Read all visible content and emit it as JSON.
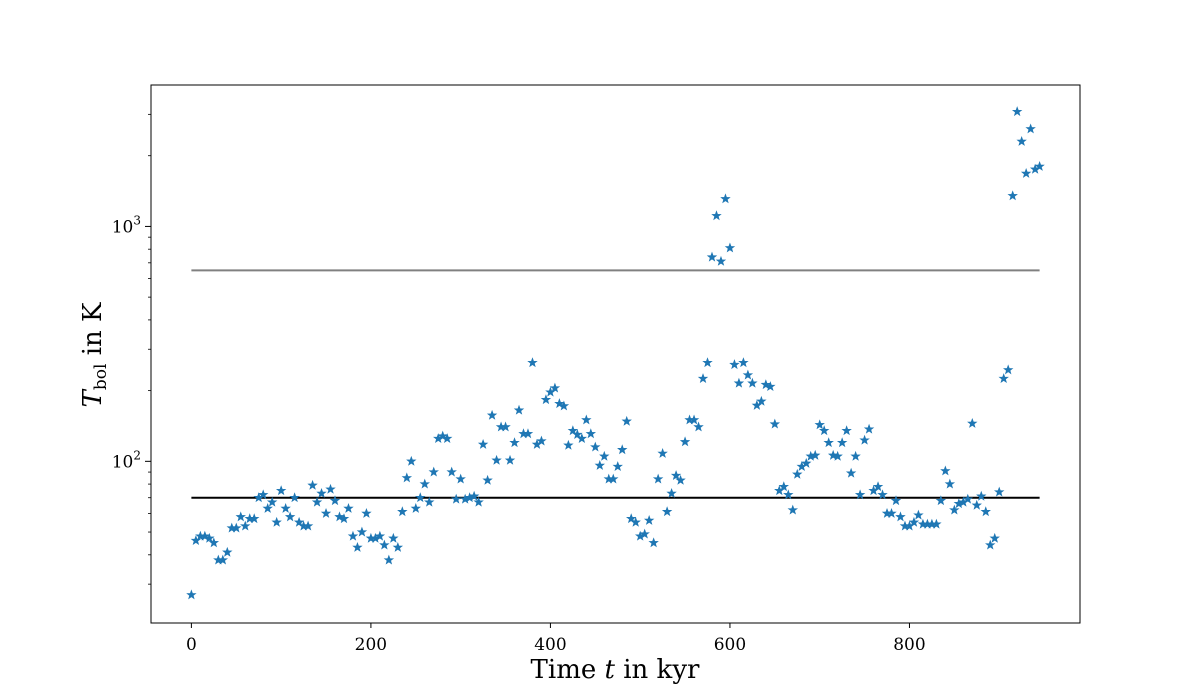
{
  "chart_data": {
    "type": "scatter",
    "title": "",
    "xlabel": "Time t in kyr",
    "xlabel_parts": {
      "prefix": "Time ",
      "var": "t",
      "suffix": " in kyr"
    },
    "ylabel": "T_bol in K",
    "ylabel_parts": {
      "var": "T",
      "sub": "bol",
      "suffix": " in K"
    },
    "xlim": [
      -45,
      990
    ],
    "ylim": [
      20.5,
      4000
    ],
    "yscale": "log",
    "grid": false,
    "legend": "none",
    "x_ticks": [
      0,
      200,
      400,
      600,
      800
    ],
    "x_tick_labels": [
      "0",
      "200",
      "400",
      "600",
      "800"
    ],
    "y_ticks_major": [
      100,
      1000
    ],
    "y_tick_labels": [
      {
        "base": "10",
        "exp": "2"
      },
      {
        "base": "10",
        "exp": "3"
      }
    ],
    "y_ticks_minor": [
      30,
      40,
      50,
      60,
      70,
      80,
      90,
      200,
      300,
      400,
      500,
      600,
      700,
      800,
      900,
      2000,
      3000
    ],
    "marker": "star",
    "marker_color": "#1f77b4",
    "reference_lines": [
      {
        "y": 70,
        "x_range": [
          0,
          945
        ],
        "color": "#000000"
      },
      {
        "y": 650,
        "x_range": [
          0,
          945
        ],
        "color": "#808080"
      }
    ],
    "series": [
      {
        "points": [
          [
            0,
            27
          ],
          [
            5,
            46
          ],
          [
            10,
            48
          ],
          [
            15,
            48
          ],
          [
            20,
            47
          ],
          [
            25,
            45
          ],
          [
            30,
            38
          ],
          [
            35,
            38
          ],
          [
            40,
            41
          ],
          [
            45,
            52
          ],
          [
            50,
            52
          ],
          [
            55,
            58
          ],
          [
            60,
            53
          ],
          [
            65,
            57
          ],
          [
            70,
            57
          ],
          [
            75,
            70
          ],
          [
            80,
            72
          ],
          [
            85,
            63
          ],
          [
            90,
            67
          ],
          [
            95,
            55
          ],
          [
            100,
            75
          ],
          [
            105,
            63
          ],
          [
            110,
            58
          ],
          [
            115,
            70
          ],
          [
            120,
            55
          ],
          [
            125,
            53
          ],
          [
            130,
            53
          ],
          [
            135,
            79
          ],
          [
            140,
            67
          ],
          [
            145,
            73
          ],
          [
            150,
            60
          ],
          [
            155,
            76
          ],
          [
            160,
            68
          ],
          [
            165,
            58
          ],
          [
            170,
            57
          ],
          [
            175,
            63
          ],
          [
            180,
            48
          ],
          [
            185,
            43
          ],
          [
            190,
            50
          ],
          [
            195,
            60
          ],
          [
            200,
            47
          ],
          [
            205,
            47
          ],
          [
            210,
            48
          ],
          [
            215,
            44
          ],
          [
            220,
            38
          ],
          [
            225,
            47
          ],
          [
            230,
            43
          ],
          [
            235,
            61
          ],
          [
            240,
            85
          ],
          [
            245,
            100
          ],
          [
            250,
            63
          ],
          [
            255,
            70
          ],
          [
            260,
            80
          ],
          [
            265,
            67
          ],
          [
            270,
            90
          ],
          [
            275,
            125
          ],
          [
            280,
            128
          ],
          [
            285,
            125
          ],
          [
            290,
            90
          ],
          [
            295,
            69
          ],
          [
            300,
            84
          ],
          [
            305,
            69
          ],
          [
            310,
            70
          ],
          [
            315,
            71
          ],
          [
            320,
            67
          ],
          [
            325,
            118
          ],
          [
            330,
            83
          ],
          [
            335,
            157
          ],
          [
            340,
            101
          ],
          [
            345,
            140
          ],
          [
            350,
            140
          ],
          [
            355,
            101
          ],
          [
            360,
            120
          ],
          [
            365,
            165
          ],
          [
            370,
            131
          ],
          [
            375,
            131
          ],
          [
            380,
            263
          ],
          [
            385,
            118
          ],
          [
            390,
            122
          ],
          [
            395,
            183
          ],
          [
            400,
            197
          ],
          [
            405,
            205
          ],
          [
            410,
            176
          ],
          [
            415,
            172
          ],
          [
            420,
            117
          ],
          [
            425,
            135
          ],
          [
            430,
            130
          ],
          [
            435,
            125
          ],
          [
            440,
            150
          ],
          [
            445,
            131
          ],
          [
            450,
            115
          ],
          [
            455,
            96
          ],
          [
            460,
            105
          ],
          [
            465,
            84
          ],
          [
            470,
            84
          ],
          [
            475,
            95
          ],
          [
            480,
            112
          ],
          [
            485,
            148
          ],
          [
            490,
            57
          ],
          [
            495,
            55
          ],
          [
            500,
            48
          ],
          [
            505,
            49
          ],
          [
            510,
            56
          ],
          [
            515,
            45
          ],
          [
            520,
            84
          ],
          [
            525,
            108
          ],
          [
            530,
            61
          ],
          [
            535,
            73
          ],
          [
            540,
            87
          ],
          [
            545,
            83
          ],
          [
            550,
            121
          ],
          [
            555,
            150
          ],
          [
            560,
            150
          ],
          [
            565,
            140
          ],
          [
            570,
            225
          ],
          [
            575,
            263
          ],
          [
            580,
            740
          ],
          [
            585,
            1110
          ],
          [
            590,
            710
          ],
          [
            595,
            1310
          ],
          [
            600,
            810
          ],
          [
            605,
            258
          ],
          [
            610,
            215
          ],
          [
            615,
            263
          ],
          [
            620,
            233
          ],
          [
            625,
            215
          ],
          [
            630,
            173
          ],
          [
            635,
            180
          ],
          [
            640,
            212
          ],
          [
            645,
            208
          ],
          [
            650,
            144
          ],
          [
            655,
            75
          ],
          [
            660,
            78
          ],
          [
            665,
            72
          ],
          [
            670,
            62
          ],
          [
            675,
            88
          ],
          [
            680,
            95
          ],
          [
            685,
            98
          ],
          [
            690,
            105
          ],
          [
            695,
            106
          ],
          [
            700,
            143
          ],
          [
            705,
            135
          ],
          [
            710,
            120
          ],
          [
            715,
            106
          ],
          [
            720,
            105
          ],
          [
            725,
            120
          ],
          [
            730,
            135
          ],
          [
            735,
            89
          ],
          [
            740,
            105
          ],
          [
            745,
            72
          ],
          [
            750,
            123
          ],
          [
            755,
            137
          ],
          [
            760,
            75
          ],
          [
            765,
            78
          ],
          [
            770,
            72
          ],
          [
            775,
            60
          ],
          [
            780,
            60
          ],
          [
            785,
            68
          ],
          [
            790,
            58
          ],
          [
            795,
            53
          ],
          [
            800,
            53
          ],
          [
            805,
            55
          ],
          [
            810,
            59
          ],
          [
            815,
            54
          ],
          [
            820,
            54
          ],
          [
            825,
            54
          ],
          [
            830,
            54
          ],
          [
            835,
            68
          ],
          [
            840,
            91
          ],
          [
            845,
            80
          ],
          [
            850,
            62
          ],
          [
            855,
            66
          ],
          [
            860,
            67
          ],
          [
            865,
            69
          ],
          [
            870,
            145
          ],
          [
            875,
            65
          ],
          [
            880,
            71
          ],
          [
            885,
            61
          ],
          [
            890,
            44
          ],
          [
            895,
            47
          ],
          [
            900,
            74
          ],
          [
            905,
            225
          ],
          [
            910,
            245
          ],
          [
            915,
            1350
          ],
          [
            920,
            3080
          ],
          [
            925,
            2300
          ],
          [
            930,
            1680
          ],
          [
            935,
            2600
          ],
          [
            940,
            1750
          ],
          [
            945,
            1800
          ]
        ]
      }
    ]
  }
}
